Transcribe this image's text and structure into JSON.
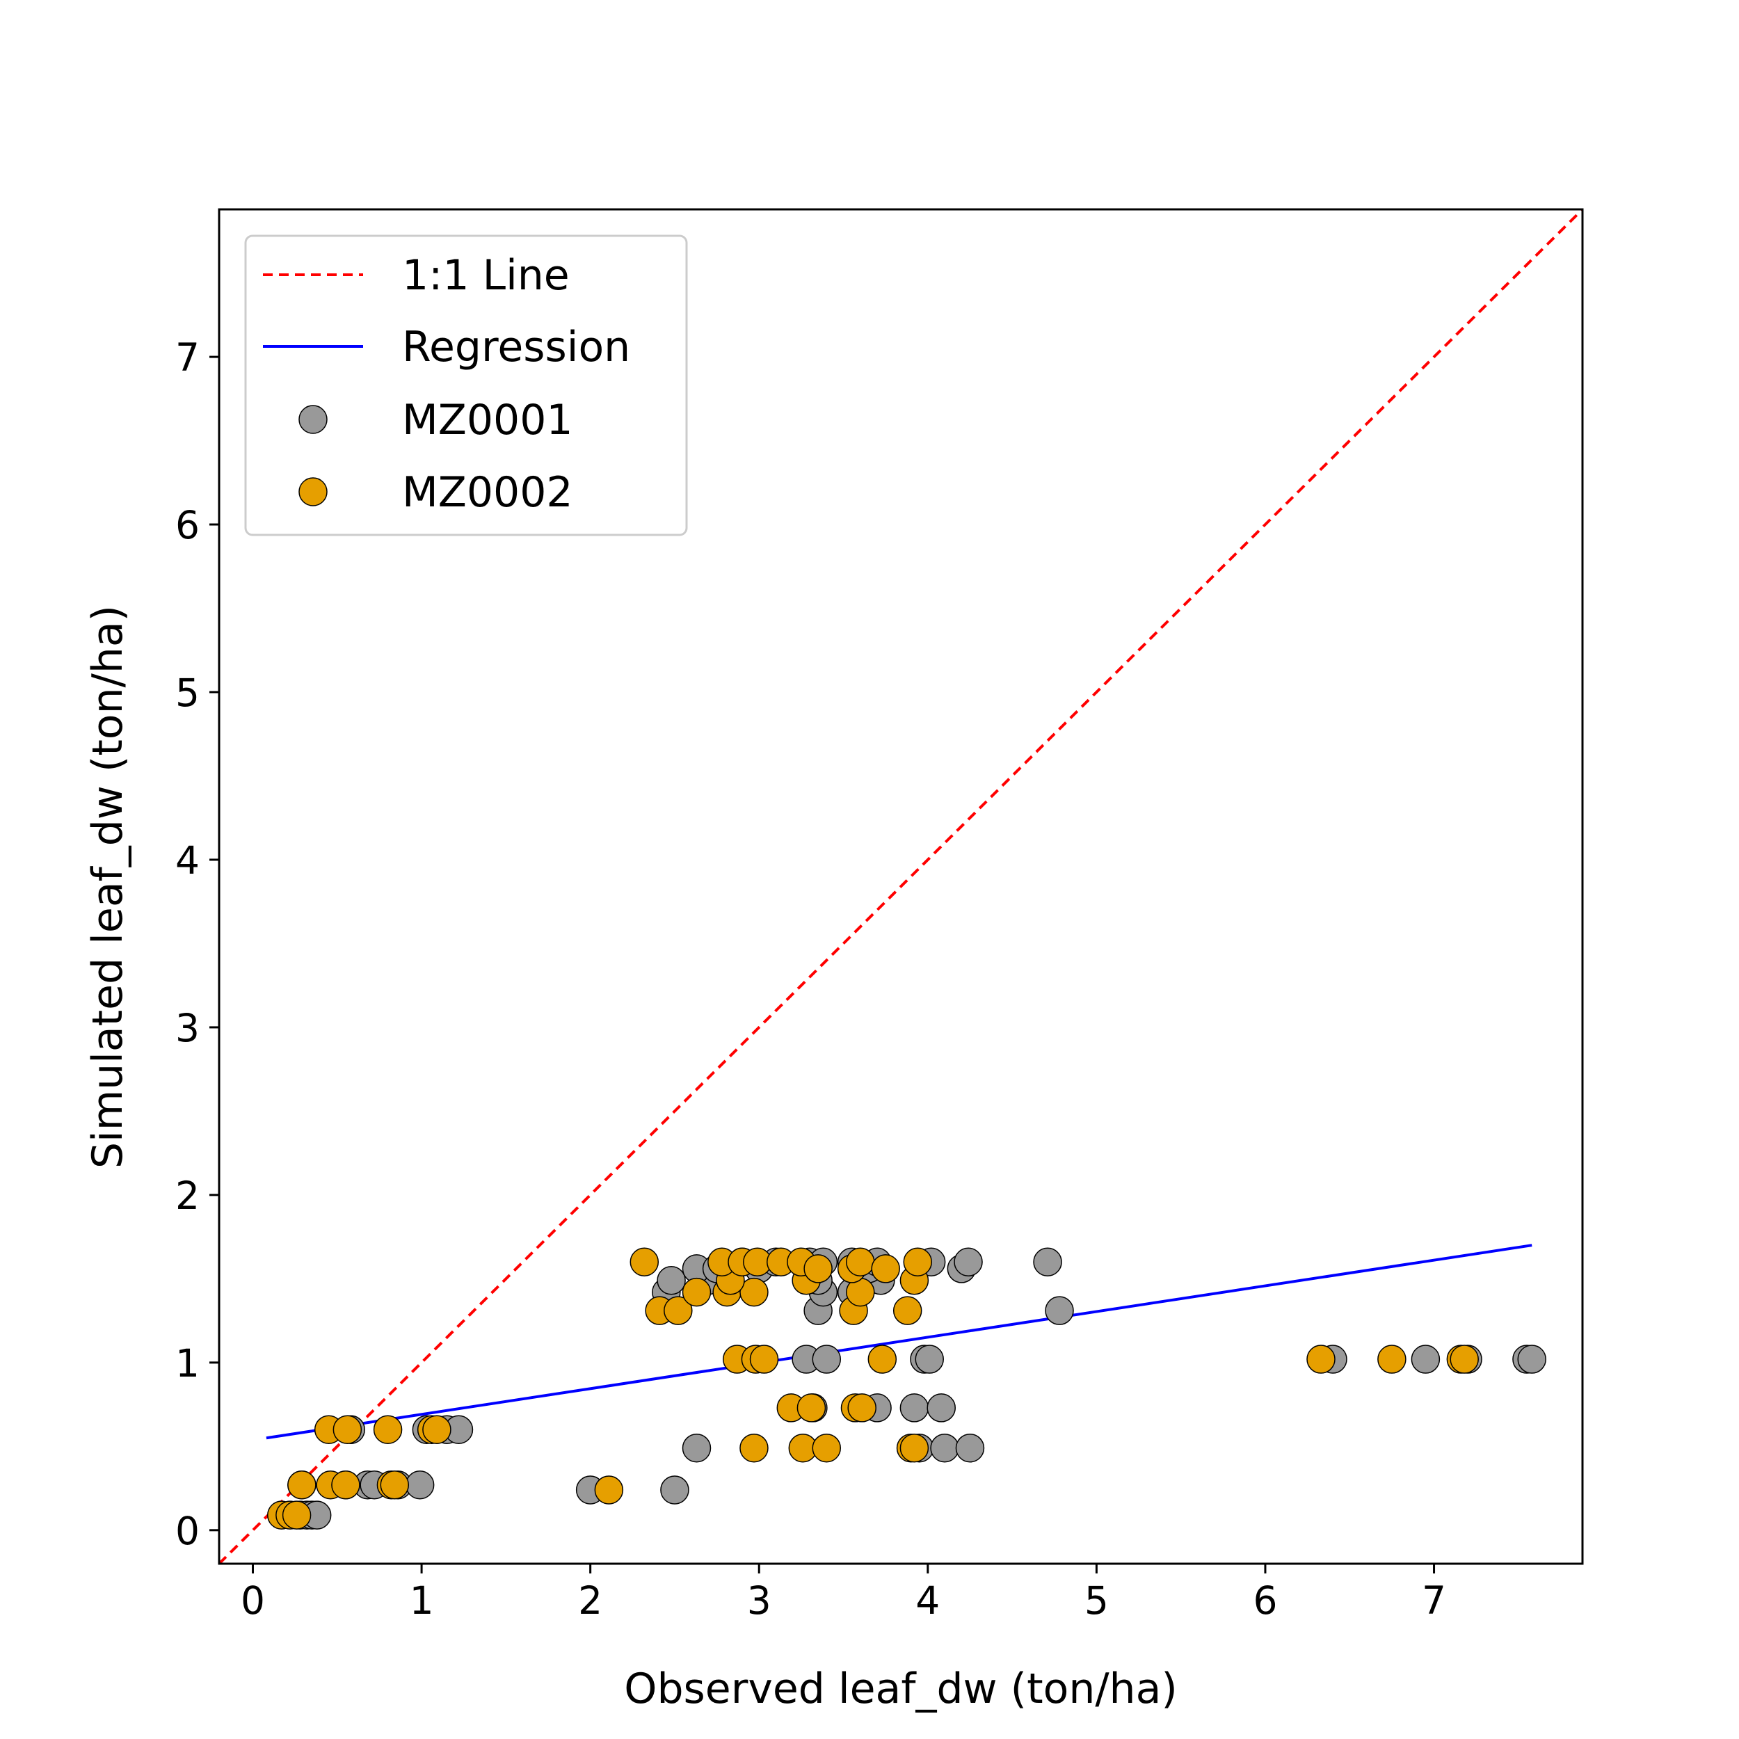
{
  "chart_data": {
    "type": "scatter",
    "title": "",
    "xlabel": "Observed leaf_dw (ton/ha)",
    "ylabel": "Simulated leaf_dw (ton/ha)",
    "xlim": [
      -0.2,
      7.88
    ],
    "ylim": [
      -0.2,
      7.88
    ],
    "xticks": [
      "0",
      "1",
      "2",
      "3",
      "4",
      "5",
      "6",
      "7"
    ],
    "yticks": [
      "0",
      "1",
      "2",
      "3",
      "4",
      "5",
      "6",
      "7"
    ],
    "grid": false,
    "legend_position": "top-left",
    "one_to_one_line": {
      "name": "1:1 Line",
      "color": "#ff0000",
      "style": "dashed",
      "x": [
        -0.2,
        7.88
      ],
      "y": [
        -0.2,
        7.88
      ]
    },
    "regression_line": {
      "name": "Regression",
      "color": "#0000ff",
      "x": [
        0.08,
        7.58
      ],
      "y": [
        0.55,
        1.7
      ]
    },
    "series": [
      {
        "name": "MZ0001",
        "color": "#999999",
        "points": [
          [
            0.28,
            0.09
          ],
          [
            0.32,
            0.09
          ],
          [
            0.35,
            0.09
          ],
          [
            0.38,
            0.09
          ],
          [
            0.29,
            0.27
          ],
          [
            0.55,
            0.27
          ],
          [
            0.68,
            0.27
          ],
          [
            0.72,
            0.27
          ],
          [
            0.86,
            0.27
          ],
          [
            0.99,
            0.27
          ],
          [
            0.58,
            0.6
          ],
          [
            1.03,
            0.6
          ],
          [
            1.15,
            0.6
          ],
          [
            1.22,
            0.6
          ],
          [
            2.0,
            0.24
          ],
          [
            2.5,
            0.24
          ],
          [
            2.63,
            0.49
          ],
          [
            3.95,
            0.49
          ],
          [
            4.1,
            0.49
          ],
          [
            4.25,
            0.49
          ],
          [
            3.32,
            0.73
          ],
          [
            3.7,
            0.73
          ],
          [
            3.92,
            0.73
          ],
          [
            4.08,
            0.73
          ],
          [
            3.28,
            1.02
          ],
          [
            3.4,
            1.02
          ],
          [
            3.98,
            1.02
          ],
          [
            4.01,
            1.02
          ],
          [
            6.4,
            1.02
          ],
          [
            6.95,
            1.02
          ],
          [
            7.2,
            1.02
          ],
          [
            7.55,
            1.02
          ],
          [
            7.58,
            1.02
          ],
          [
            3.35,
            1.31
          ],
          [
            4.78,
            1.31
          ],
          [
            2.45,
            1.42
          ],
          [
            3.38,
            1.42
          ],
          [
            3.55,
            1.42
          ],
          [
            2.48,
            1.49
          ],
          [
            2.7,
            1.49
          ],
          [
            3.35,
            1.49
          ],
          [
            3.72,
            1.49
          ],
          [
            2.63,
            1.56
          ],
          [
            2.75,
            1.56
          ],
          [
            3.0,
            1.56
          ],
          [
            3.65,
            1.56
          ],
          [
            4.2,
            1.56
          ],
          [
            2.9,
            1.6
          ],
          [
            3.1,
            1.6
          ],
          [
            3.3,
            1.6
          ],
          [
            3.38,
            1.6
          ],
          [
            3.55,
            1.6
          ],
          [
            3.7,
            1.6
          ],
          [
            4.02,
            1.6
          ],
          [
            4.24,
            1.6
          ],
          [
            4.71,
            1.6
          ]
        ]
      },
      {
        "name": "MZ0002",
        "color": "#e69f00",
        "points": [
          [
            0.17,
            0.09
          ],
          [
            0.22,
            0.09
          ],
          [
            0.26,
            0.09
          ],
          [
            0.29,
            0.27
          ],
          [
            0.46,
            0.27
          ],
          [
            0.55,
            0.27
          ],
          [
            0.82,
            0.27
          ],
          [
            0.84,
            0.27
          ],
          [
            0.45,
            0.6
          ],
          [
            0.56,
            0.6
          ],
          [
            0.8,
            0.6
          ],
          [
            1.06,
            0.6
          ],
          [
            1.09,
            0.6
          ],
          [
            2.11,
            0.24
          ],
          [
            2.97,
            0.49
          ],
          [
            3.26,
            0.49
          ],
          [
            3.4,
            0.49
          ],
          [
            3.9,
            0.49
          ],
          [
            3.92,
            0.49
          ],
          [
            3.19,
            0.73
          ],
          [
            3.31,
            0.73
          ],
          [
            3.57,
            0.73
          ],
          [
            3.61,
            0.73
          ],
          [
            2.87,
            1.02
          ],
          [
            2.98,
            1.02
          ],
          [
            3.03,
            1.02
          ],
          [
            3.73,
            1.02
          ],
          [
            6.33,
            1.02
          ],
          [
            6.75,
            1.02
          ],
          [
            7.16,
            1.02
          ],
          [
            7.18,
            1.02
          ],
          [
            2.41,
            1.31
          ],
          [
            2.52,
            1.31
          ],
          [
            3.56,
            1.31
          ],
          [
            3.88,
            1.31
          ],
          [
            2.63,
            1.42
          ],
          [
            2.81,
            1.42
          ],
          [
            2.97,
            1.42
          ],
          [
            3.6,
            1.42
          ],
          [
            2.83,
            1.49
          ],
          [
            3.28,
            1.49
          ],
          [
            3.92,
            1.49
          ],
          [
            2.32,
            1.6
          ],
          [
            2.78,
            1.6
          ],
          [
            2.9,
            1.6
          ],
          [
            2.99,
            1.6
          ],
          [
            3.13,
            1.6
          ],
          [
            3.25,
            1.6
          ],
          [
            3.35,
            1.56
          ],
          [
            3.55,
            1.56
          ],
          [
            3.6,
            1.6
          ],
          [
            3.75,
            1.56
          ],
          [
            3.94,
            1.6
          ]
        ]
      }
    ]
  }
}
